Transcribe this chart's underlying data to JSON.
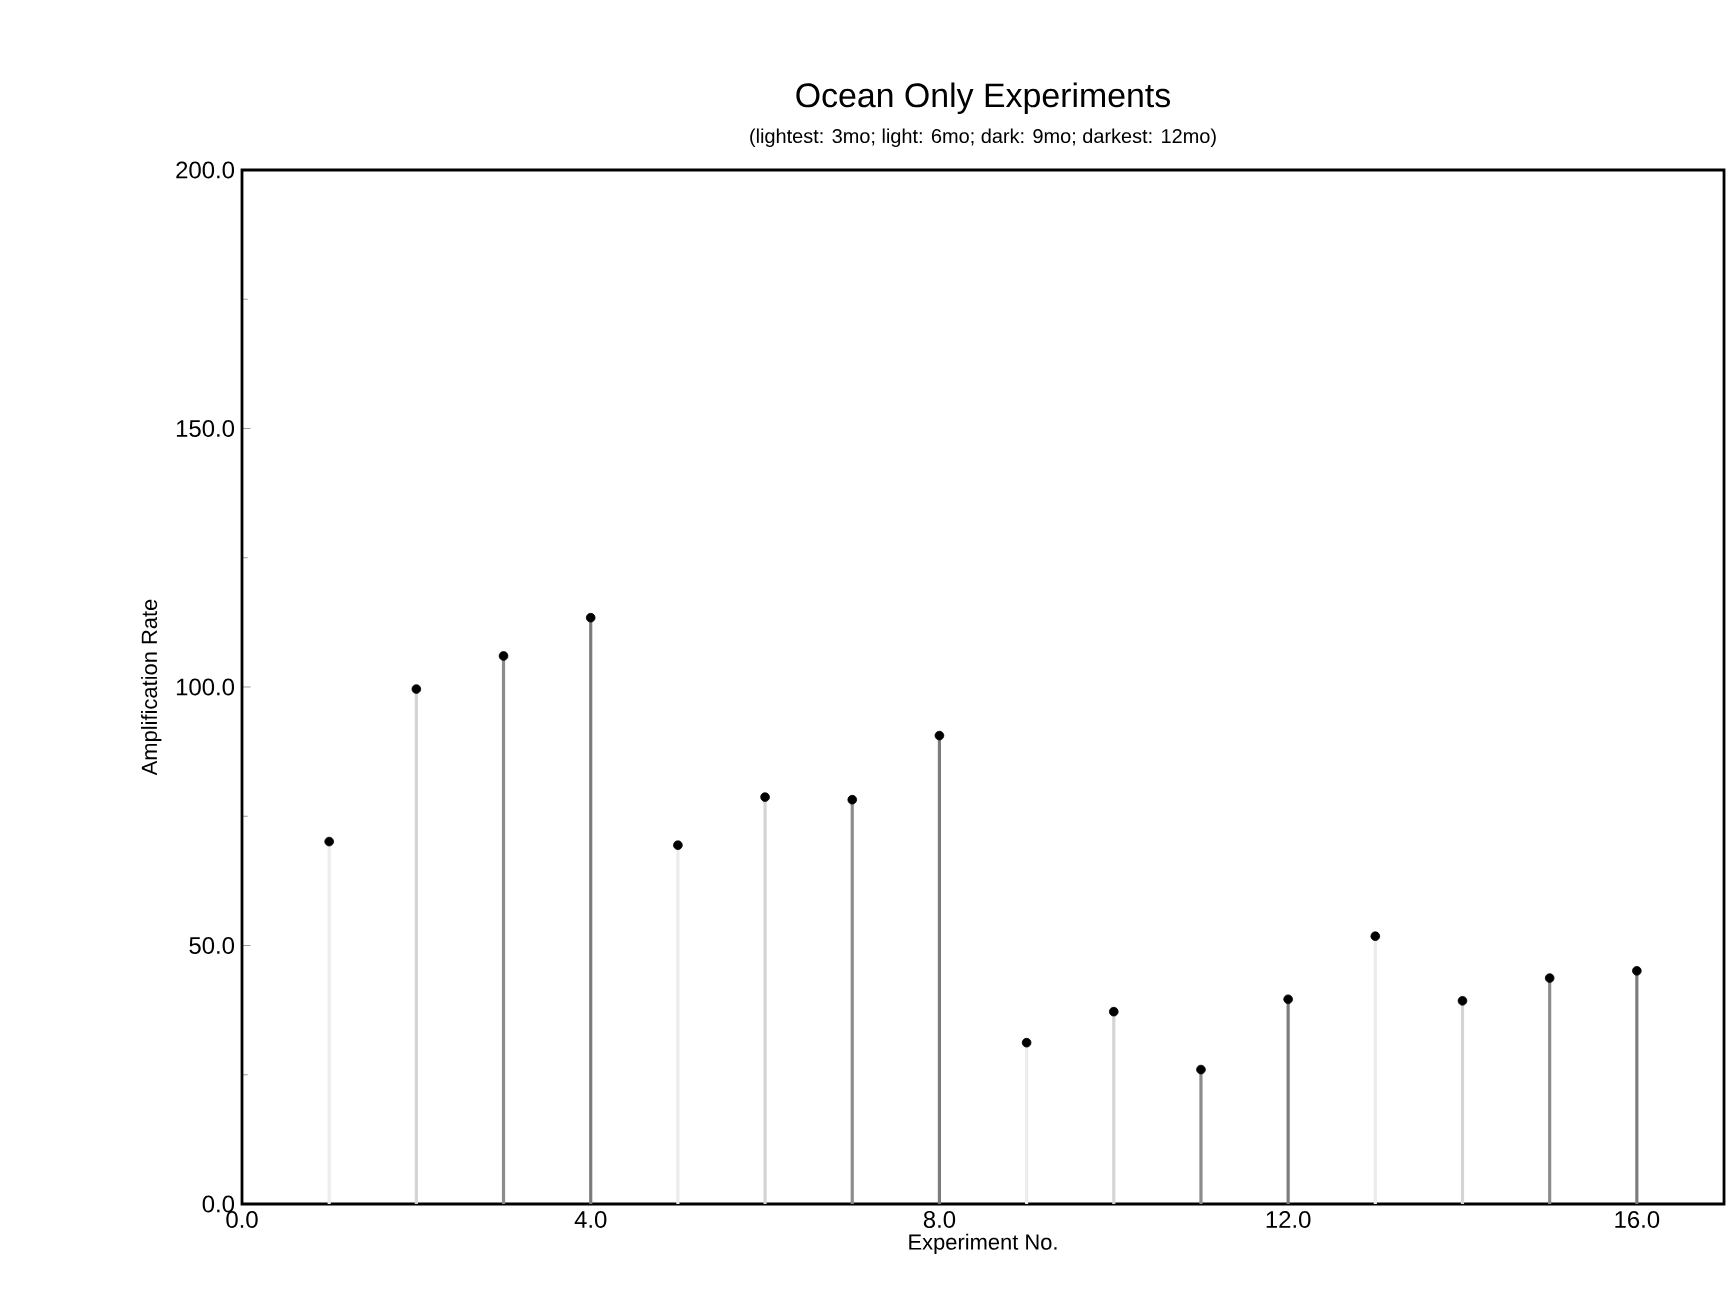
{
  "chart_data": {
    "type": "bar",
    "title": "Ocean Only Experiments",
    "subtitle": "(lightest: 3mo; light: 6mo; dark: 9mo; darkest: 12mo)",
    "xlabel": "Experiment No.",
    "ylabel": "Amplification Rate",
    "x": [
      1,
      2,
      3,
      4,
      5,
      6,
      7,
      8,
      9,
      10,
      11,
      12,
      13,
      14,
      15,
      16
    ],
    "series": [
      {
        "colors": [
          "#ececec",
          "#d4d4d4",
          "#8c8c8c",
          "#7c7c7c",
          "#ececec",
          "#d4d4d4",
          "#8c8c8c",
          "#7c7c7c",
          "#ececec",
          "#d4d4d4",
          "#8c8c8c",
          "#7c7c7c",
          "#ececec",
          "#d4d4d4",
          "#8c8c8c",
          "#7c7c7c"
        ],
        "values": [
          70.1,
          99.6,
          106,
          113.4,
          69.4,
          78.7,
          78.2,
          90.6,
          31.2,
          37.2,
          26,
          39.6,
          51.8,
          39.3,
          43.7,
          45.1
        ]
      },
      {
        "type": "scatter",
        "color": "#000000",
        "marker": "circle",
        "values": [
          70.1,
          99.6,
          106,
          113.4,
          69.4,
          78.7,
          78.2,
          90.6,
          31.2,
          37.2,
          26,
          39.6,
          51.8,
          39.3,
          43.7,
          45.1
        ]
      }
    ],
    "xlim": [
      0,
      17
    ],
    "ylim": [
      0,
      200
    ],
    "xticks": [
      {
        "value": 0,
        "label": "0.0"
      },
      {
        "value": 4,
        "label": "4.0"
      },
      {
        "value": 8,
        "label": "8.0"
      },
      {
        "value": 12,
        "label": "12.0"
      },
      {
        "value": 16,
        "label": "16.0"
      }
    ],
    "yticks": [
      {
        "value": 0,
        "label": "0.0"
      },
      {
        "value": 50,
        "label": "50.0"
      },
      {
        "value": 100,
        "label": "100.0"
      },
      {
        "value": 150,
        "label": "150.0"
      },
      {
        "value": 200,
        "label": "200.0"
      }
    ]
  }
}
